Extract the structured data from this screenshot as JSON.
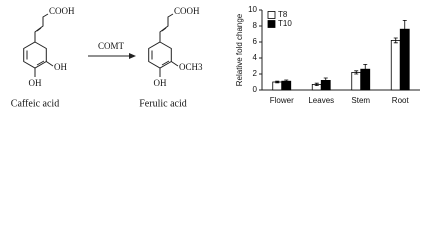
{
  "diagram": {
    "reactant": {
      "name": "Caffeic acid",
      "groups": [
        "COOH",
        "OH",
        "OH"
      ]
    },
    "enzyme": "COMT",
    "product": {
      "name": "Ferulic acid",
      "groups": [
        "COOH",
        "OCH3",
        "OH"
      ]
    }
  },
  "chart_data": {
    "type": "bar",
    "y_label": "Relative fold change",
    "categories": [
      "Flower",
      "Leaves",
      "Stem",
      "Root"
    ],
    "series": [
      {
        "name": "T8",
        "color": "#ffffff",
        "values": [
          1.0,
          0.7,
          2.2,
          6.2
        ],
        "errors": [
          0.1,
          0.15,
          0.2,
          0.3
        ]
      },
      {
        "name": "T10",
        "color": "#000000",
        "values": [
          1.1,
          1.2,
          2.6,
          7.6
        ],
        "errors": [
          0.15,
          0.3,
          0.6,
          1.1
        ]
      }
    ],
    "ylim": [
      0,
      10
    ],
    "yticks": [
      0,
      2,
      4,
      6,
      8,
      10
    ],
    "legend": "upper left"
  }
}
